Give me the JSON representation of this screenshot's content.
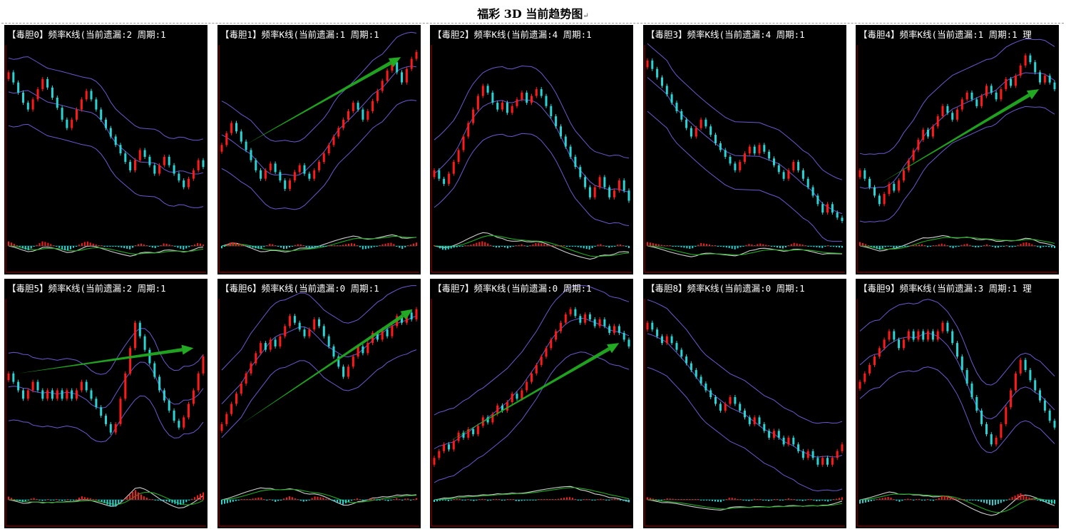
{
  "page": {
    "title": "福彩 3D 当前趋势图",
    "title_mark": "↵"
  },
  "colors": {
    "background": "#000000",
    "frame": "#8b0000",
    "up_candle": "#ff1a1a",
    "down_candle": "#2ad4d4",
    "band": "#6a5acd",
    "trend_arrow": "#22aa22",
    "macd_fast": "#d0d0d0",
    "macd_slow": "#22aa22"
  },
  "chart_data": [
    {
      "type": "candlestick",
      "title": "【毒胆0】频率K线(当前遗漏:2 周期:1",
      "trend": "down",
      "close": [
        0.88,
        0.82,
        0.76,
        0.7,
        0.66,
        0.72,
        0.78,
        0.84,
        0.79,
        0.73,
        0.67,
        0.6,
        0.55,
        0.6,
        0.66,
        0.72,
        0.77,
        0.72,
        0.66,
        0.6,
        0.55,
        0.5,
        0.45,
        0.4,
        0.35,
        0.3,
        0.36,
        0.42,
        0.38,
        0.33,
        0.28,
        0.33,
        0.38,
        0.33,
        0.28,
        0.24,
        0.2,
        0.25,
        0.3,
        0.36,
        0.32
      ]
    },
    {
      "type": "candlestick",
      "title": "【毒胆1】频率K线(当前遗漏:1 周期:1",
      "trend": "up",
      "arrow": [
        0.12,
        0.45,
        0.92,
        0.97
      ],
      "close": [
        0.45,
        0.52,
        0.58,
        0.53,
        0.47,
        0.42,
        0.36,
        0.3,
        0.25,
        0.3,
        0.34,
        0.29,
        0.24,
        0.19,
        0.24,
        0.29,
        0.33,
        0.28,
        0.25,
        0.3,
        0.35,
        0.4,
        0.45,
        0.5,
        0.55,
        0.6,
        0.65,
        0.7,
        0.66,
        0.6,
        0.65,
        0.71,
        0.77,
        0.83,
        0.89,
        0.94,
        0.88,
        0.82,
        0.9,
        0.96,
        1.0
      ]
    },
    {
      "type": "candlestick",
      "title": "【毒胆2】频率K线(当前遗漏:4 周期:1",
      "trend": "peak",
      "close": [
        0.3,
        0.25,
        0.22,
        0.28,
        0.35,
        0.42,
        0.5,
        0.58,
        0.66,
        0.74,
        0.8,
        0.76,
        0.7,
        0.66,
        0.7,
        0.64,
        0.68,
        0.72,
        0.76,
        0.7,
        0.74,
        0.78,
        0.74,
        0.68,
        0.62,
        0.56,
        0.5,
        0.44,
        0.38,
        0.32,
        0.26,
        0.2,
        0.14,
        0.2,
        0.26,
        0.2,
        0.14,
        0.18,
        0.24,
        0.18,
        0.12
      ]
    },
    {
      "type": "candlestick",
      "title": "【毒胆3】频率K线(当前遗漏:4 周期:1",
      "trend": "down",
      "close": [
        0.95,
        0.9,
        0.85,
        0.8,
        0.75,
        0.7,
        0.65,
        0.6,
        0.55,
        0.5,
        0.55,
        0.6,
        0.56,
        0.51,
        0.46,
        0.42,
        0.38,
        0.34,
        0.3,
        0.35,
        0.4,
        0.44,
        0.4,
        0.45,
        0.41,
        0.37,
        0.33,
        0.29,
        0.25,
        0.3,
        0.35,
        0.3,
        0.25,
        0.2,
        0.15,
        0.1,
        0.05,
        0.1,
        0.05,
        0.02,
        0.0
      ]
    },
    {
      "type": "candlestick",
      "title": "【毒胆4】频率K线(当前遗漏:1 周期:1 理",
      "trend": "up",
      "arrow": [
        0.1,
        0.22,
        0.92,
        0.78
      ],
      "close": [
        0.3,
        0.25,
        0.2,
        0.15,
        0.1,
        0.16,
        0.22,
        0.18,
        0.24,
        0.3,
        0.36,
        0.42,
        0.48,
        0.54,
        0.5,
        0.56,
        0.62,
        0.68,
        0.64,
        0.6,
        0.66,
        0.72,
        0.76,
        0.72,
        0.68,
        0.74,
        0.8,
        0.76,
        0.72,
        0.78,
        0.84,
        0.8,
        0.86,
        0.92,
        0.98,
        0.94,
        0.88,
        0.82,
        0.86,
        0.82,
        0.78
      ]
    },
    {
      "type": "candlestick",
      "title": "【毒胆5】频率K线(当前遗漏:2 周期:1",
      "trend": "volatile",
      "arrow": [
        0.05,
        0.6,
        0.95,
        0.75
      ],
      "close": [
        0.6,
        0.55,
        0.5,
        0.45,
        0.5,
        0.55,
        0.5,
        0.45,
        0.5,
        0.45,
        0.5,
        0.45,
        0.5,
        0.45,
        0.5,
        0.55,
        0.5,
        0.45,
        0.4,
        0.35,
        0.3,
        0.25,
        0.3,
        0.45,
        0.6,
        0.75,
        0.9,
        0.82,
        0.74,
        0.66,
        0.58,
        0.5,
        0.44,
        0.38,
        0.32,
        0.28,
        0.34,
        0.42,
        0.5,
        0.6,
        0.7
      ]
    },
    {
      "type": "candlestick",
      "title": "【毒胆6】频率K线(当前遗漏:0 周期:1",
      "trend": "up",
      "arrow": [
        0.1,
        0.3,
        0.98,
        0.98
      ],
      "close": [
        0.3,
        0.36,
        0.42,
        0.48,
        0.54,
        0.6,
        0.66,
        0.72,
        0.78,
        0.74,
        0.8,
        0.76,
        0.82,
        0.88,
        0.94,
        0.9,
        0.86,
        0.82,
        0.86,
        0.92,
        0.88,
        0.82,
        0.76,
        0.7,
        0.64,
        0.58,
        0.64,
        0.7,
        0.76,
        0.72,
        0.78,
        0.84,
        0.8,
        0.86,
        0.82,
        0.88,
        0.94,
        0.9,
        0.96,
        0.92,
        0.98
      ]
    },
    {
      "type": "candlestick",
      "title": "【毒胆7】频率K线(当前遗漏:0 周期:1",
      "trend": "up",
      "arrow": [
        0.05,
        0.18,
        0.95,
        0.78
      ],
      "close": [
        0.1,
        0.14,
        0.18,
        0.15,
        0.2,
        0.25,
        0.22,
        0.27,
        0.24,
        0.29,
        0.34,
        0.31,
        0.36,
        0.41,
        0.38,
        0.43,
        0.48,
        0.45,
        0.5,
        0.55,
        0.6,
        0.65,
        0.7,
        0.75,
        0.8,
        0.85,
        0.9,
        0.95,
        0.98,
        0.94,
        0.9,
        0.95,
        0.92,
        0.88,
        0.92,
        0.88,
        0.84,
        0.88,
        0.84,
        0.8,
        0.76
      ]
    },
    {
      "type": "candlestick",
      "title": "【毒胆8】频率K线(当前遗漏:0 周期:1",
      "trend": "down",
      "close": [
        0.9,
        0.86,
        0.82,
        0.78,
        0.82,
        0.78,
        0.74,
        0.7,
        0.66,
        0.62,
        0.58,
        0.54,
        0.5,
        0.46,
        0.42,
        0.38,
        0.42,
        0.46,
        0.42,
        0.38,
        0.34,
        0.3,
        0.34,
        0.3,
        0.26,
        0.22,
        0.26,
        0.22,
        0.18,
        0.22,
        0.18,
        0.14,
        0.1,
        0.14,
        0.1,
        0.06,
        0.1,
        0.06,
        0.1,
        0.14,
        0.18
      ]
    },
    {
      "type": "candlestick",
      "title": "【毒胆9】频率K线(当前遗漏:3 周期:1 理",
      "trend": "peak",
      "close": [
        0.55,
        0.6,
        0.65,
        0.7,
        0.75,
        0.8,
        0.85,
        0.8,
        0.75,
        0.8,
        0.85,
        0.8,
        0.85,
        0.8,
        0.85,
        0.8,
        0.85,
        0.9,
        0.85,
        0.78,
        0.7,
        0.62,
        0.54,
        0.46,
        0.38,
        0.3,
        0.24,
        0.18,
        0.22,
        0.3,
        0.4,
        0.5,
        0.6,
        0.68,
        0.62,
        0.56,
        0.5,
        0.44,
        0.38,
        0.32,
        0.28
      ]
    }
  ]
}
